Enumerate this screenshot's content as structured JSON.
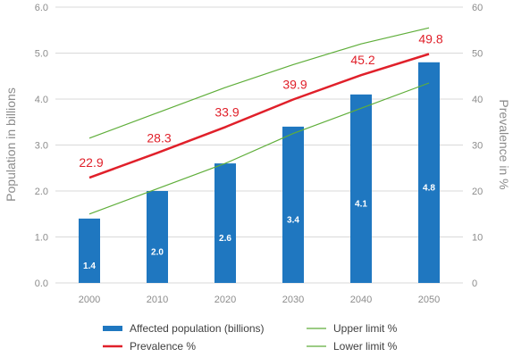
{
  "chart_data": {
    "type": "bar",
    "categories": [
      "2000",
      "2010",
      "2020",
      "2030",
      "2040",
      "2050"
    ],
    "bar_series": {
      "name": "Affected population (billions)",
      "values": [
        1.4,
        2.0,
        2.6,
        3.4,
        4.1,
        4.8
      ],
      "value_labels": [
        "1.4",
        "2.0",
        "2.6",
        "3.4",
        "4.1",
        "4.8"
      ],
      "axis": "left",
      "color": "#1f77c0"
    },
    "line_series": [
      {
        "name": "Prevalence %",
        "values": [
          22.9,
          28.3,
          33.9,
          39.9,
          45.2,
          49.8
        ],
        "value_labels": [
          "22.9",
          "28.3",
          "33.9",
          "39.9",
          "45.2",
          "49.8"
        ],
        "axis": "right",
        "color": "#e0202a"
      },
      {
        "name": "Upper limit %",
        "values": [
          31.5,
          37,
          42.5,
          47.5,
          52,
          55.5
        ],
        "axis": "right",
        "color": "#5fae3a"
      },
      {
        "name": "Lower limit %",
        "values": [
          15,
          20.5,
          26,
          32.5,
          38,
          43.5
        ],
        "axis": "right",
        "color": "#5fae3a"
      }
    ],
    "ylabel": "Population in billions",
    "y2label": "Prevalence in %",
    "ylim": [
      0,
      6
    ],
    "y2lim": [
      0,
      60
    ],
    "yticks": [
      "0.0",
      "1.0",
      "2.0",
      "3.0",
      "4.0",
      "5.0",
      "6.0"
    ],
    "y2ticks": [
      "0",
      "10",
      "20",
      "30",
      "40",
      "50",
      "60"
    ],
    "grid": true,
    "legend": {
      "placement": "bottom",
      "items": [
        {
          "label": "Affected population (billions)",
          "kind": "bar",
          "color": "#1f77c0"
        },
        {
          "label": "Upper limit %",
          "kind": "line",
          "color": "#5fae3a"
        },
        {
          "label": "Prevalence %",
          "kind": "line",
          "color": "#e0202a"
        },
        {
          "label": "Lower limit %",
          "kind": "line",
          "color": "#5fae3a"
        }
      ]
    }
  }
}
